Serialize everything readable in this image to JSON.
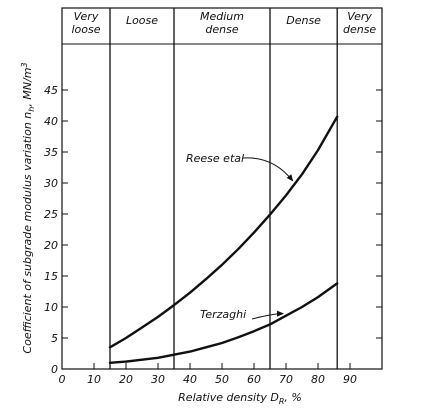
{
  "chart_data": {
    "type": "line",
    "xlabel": "Relative density D",
    "xlabel_sub": "R",
    "xlabel_unit": ", %",
    "ylabel": "Coefficient of subgrade modulus variation n",
    "ylabel_sub": "h",
    "ylabel_unit": ", MN/m",
    "ylabel_sup": "3",
    "xlim": [
      0,
      100
    ],
    "ylim": [
      0,
      50
    ],
    "xticks": [
      0,
      10,
      20,
      30,
      40,
      50,
      60,
      70,
      80,
      90
    ],
    "yticks": [
      0,
      5,
      10,
      15,
      20,
      25,
      30,
      35,
      40,
      45
    ],
    "grid": false,
    "zone_boundaries": [
      15,
      35,
      65,
      86
    ],
    "zones": [
      {
        "lines": [
          "Very",
          "loose"
        ],
        "from": 0,
        "to": 15
      },
      {
        "lines": [
          "Loose"
        ],
        "from": 15,
        "to": 35
      },
      {
        "lines": [
          "Medium",
          "dense"
        ],
        "from": 35,
        "to": 65
      },
      {
        "lines": [
          "Dense"
        ],
        "from": 65,
        "to": 86
      },
      {
        "lines": [
          "Very",
          "dense"
        ],
        "from": 86,
        "to": 100
      }
    ],
    "series": [
      {
        "name": "Reese etal",
        "x": [
          15,
          20,
          25,
          30,
          35,
          40,
          45,
          50,
          55,
          60,
          65,
          70,
          75,
          80,
          86
        ],
        "y": [
          3.5,
          5.0,
          6.7,
          8.4,
          10.3,
          12.3,
          14.5,
          16.8,
          19.3,
          22.0,
          24.9,
          28.0,
          31.4,
          35.3,
          40.7
        ]
      },
      {
        "name": "Terzaghi",
        "x": [
          15,
          20,
          25,
          30,
          35,
          40,
          45,
          50,
          55,
          60,
          65,
          70,
          75,
          80,
          86
        ],
        "y": [
          1.0,
          1.2,
          1.5,
          1.8,
          2.3,
          2.8,
          3.5,
          4.2,
          5.1,
          6.1,
          7.2,
          8.6,
          10.0,
          11.6,
          13.8
        ]
      }
    ],
    "annotations": [
      {
        "text": "Reese etal",
        "series": 0,
        "arrow_to_x": 73
      },
      {
        "text": "Terzaghi",
        "series": 1,
        "arrow_to_x": 70
      }
    ]
  }
}
